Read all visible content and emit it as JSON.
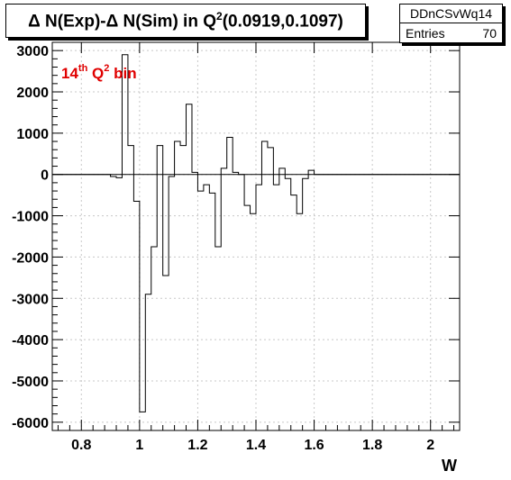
{
  "header": {
    "title_a": "Δ N(Exp)-Δ N(Sim) in Q",
    "title_sup": "2",
    "title_b": "(0.0919,0.1097)"
  },
  "stats": {
    "name": "DDnCSvWq14",
    "entries_label": "Entries",
    "entries_value": "70"
  },
  "annotation": {
    "pre": "14",
    "sup1": "th",
    "mid": " Q",
    "sup2": "2",
    "post": " bin"
  },
  "colors": {
    "annotation": "#e00000",
    "line": "#000000",
    "grid": "#c8c8c8"
  },
  "chart_data": {
    "type": "histogram",
    "xlabel": "W",
    "ylabel": "",
    "xlim": [
      0.7,
      2.1
    ],
    "ylim": [
      -6200,
      3200
    ],
    "grid": true,
    "x_ticks": [
      0.8,
      1,
      1.2,
      1.4,
      1.6,
      1.8,
      2
    ],
    "x_tick_labels": [
      "0.8",
      "1",
      "1.2",
      "1.4",
      "1.6",
      "1.8",
      "2"
    ],
    "y_ticks": [
      -6000,
      -5000,
      -4000,
      -3000,
      -2000,
      -1000,
      0,
      1000,
      2000,
      3000
    ],
    "y_tick_labels": [
      "-6000",
      "-5000",
      "-4000",
      "-3000",
      "-2000",
      "-1000",
      "0",
      "1000",
      "2000",
      "3000"
    ],
    "bin_width": 0.02,
    "x_start": 0.7,
    "values": [
      0,
      0,
      0,
      0,
      0,
      0,
      0,
      0,
      0,
      0,
      -50,
      -80,
      2900,
      700,
      -650,
      -5750,
      -2900,
      -1750,
      700,
      -2450,
      -50,
      800,
      700,
      1700,
      50,
      -400,
      -250,
      -450,
      -1750,
      150,
      900,
      50,
      0,
      -750,
      -950,
      -250,
      800,
      650,
      -250,
      150,
      -100,
      -500,
      -950,
      -100,
      100,
      0,
      0,
      0,
      0,
      0,
      0,
      0,
      0,
      0,
      0,
      0,
      0,
      0,
      0,
      0,
      0,
      0,
      0,
      0,
      0,
      0,
      0,
      0,
      0,
      0
    ]
  }
}
